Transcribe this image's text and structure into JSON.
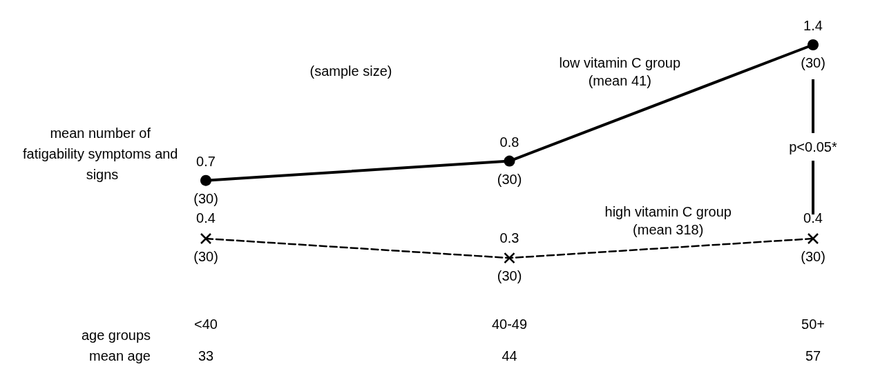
{
  "chart_data": {
    "type": "line",
    "xlabel": "age groups",
    "ylabel": "mean number of fatigability symptoms and signs",
    "categories": [
      "<40",
      "40-49",
      "50+"
    ],
    "series": [
      {
        "name": "low vitamin C group\n(mean 41)",
        "color": "#000000",
        "values": [
          0.7,
          0.8,
          1.4
        ],
        "marker": "circle",
        "line_style": "solid"
      },
      {
        "name": "high vitamin C group\n(mean 318)",
        "color": "#000000",
        "values": [
          0.4,
          0.3,
          0.4
        ],
        "marker": "cross",
        "line_style": "dashed"
      }
    ],
    "data_labels": true,
    "tick_labels": "x",
    "grid": false,
    "annotations": [
      "(sample size)",
      "mean age",
      "p<0.05*",
      "33",
      "44",
      "57",
      {
        "text": "(30)",
        "x": "<40",
        "y": 0.7
      },
      {
        "text": "(30)",
        "x": "40-49",
        "y": 0.8
      },
      {
        "text": "(30)",
        "x": "50+",
        "y": 1.4
      },
      {
        "text": "(30)",
        "x": "<40",
        "y": 0.4
      },
      {
        "text": "(30)",
        "x": "40-49",
        "y": 0.3
      },
      {
        "text": "(30)",
        "x": "50+",
        "y": 0.4
      }
    ]
  }
}
